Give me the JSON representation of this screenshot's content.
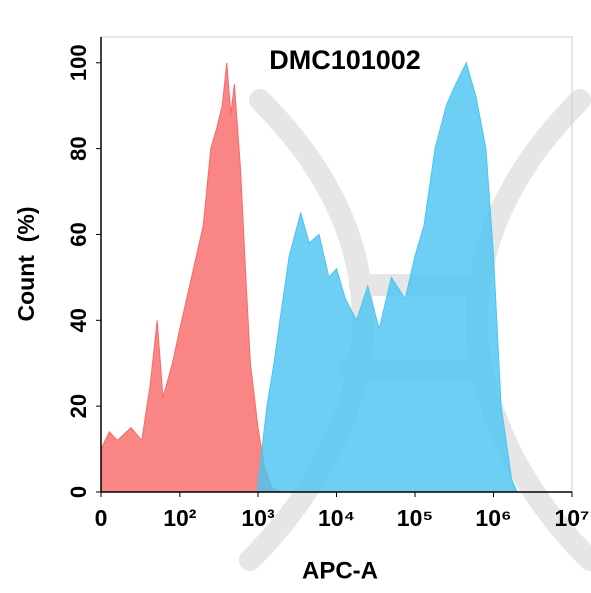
{
  "chart_data": {
    "type": "area",
    "title": "DMC101002",
    "xlabel": "APC-A",
    "ylabel": "Count  (%)",
    "xscale": "biexponential",
    "xlim": [
      0,
      10000000
    ],
    "xticks": [
      0,
      {
        "value": 100,
        "label": "10²"
      },
      {
        "value": 1000,
        "label": "10³"
      },
      {
        "value": 10000,
        "label": "10⁴"
      },
      {
        "value": 100000,
        "label": "10⁵"
      },
      {
        "value": 1000000,
        "label": "10⁶"
      },
      {
        "value": 10000000,
        "label": "10⁷"
      }
    ],
    "ylim": [
      0,
      106
    ],
    "yticks": [
      0,
      20,
      40,
      60,
      80,
      100
    ],
    "series": [
      {
        "color": "#f86a6a",
        "x": [
          0,
          5,
          10,
          20,
          30,
          40,
          50,
          60,
          80,
          100,
          150,
          200,
          250,
          300,
          350,
          400,
          450,
          500,
          600,
          700,
          800,
          1000,
          1200,
          1500,
          2000
        ],
        "values": [
          10,
          14,
          12,
          15,
          12,
          25,
          40,
          22,
          30,
          38,
          52,
          62,
          80,
          85,
          90,
          100,
          88,
          95,
          75,
          50,
          30,
          15,
          6,
          1,
          0
        ]
      },
      {
        "color": "#4cc4f0",
        "x": [
          1000,
          1300,
          1600,
          1900,
          2500,
          3500,
          4500,
          6000,
          8000,
          10000,
          13000,
          18000,
          25000,
          35000,
          50000,
          75000,
          100000,
          130000,
          180000,
          250000,
          330000,
          450000,
          600000,
          800000,
          1000000,
          1250000,
          1700000,
          2000000
        ],
        "values": [
          2,
          20,
          30,
          40,
          55,
          65,
          58,
          60,
          50,
          52,
          45,
          40,
          48,
          38,
          50,
          45,
          55,
          62,
          80,
          90,
          95,
          100,
          92,
          80,
          55,
          20,
          3,
          0
        ]
      }
    ]
  }
}
